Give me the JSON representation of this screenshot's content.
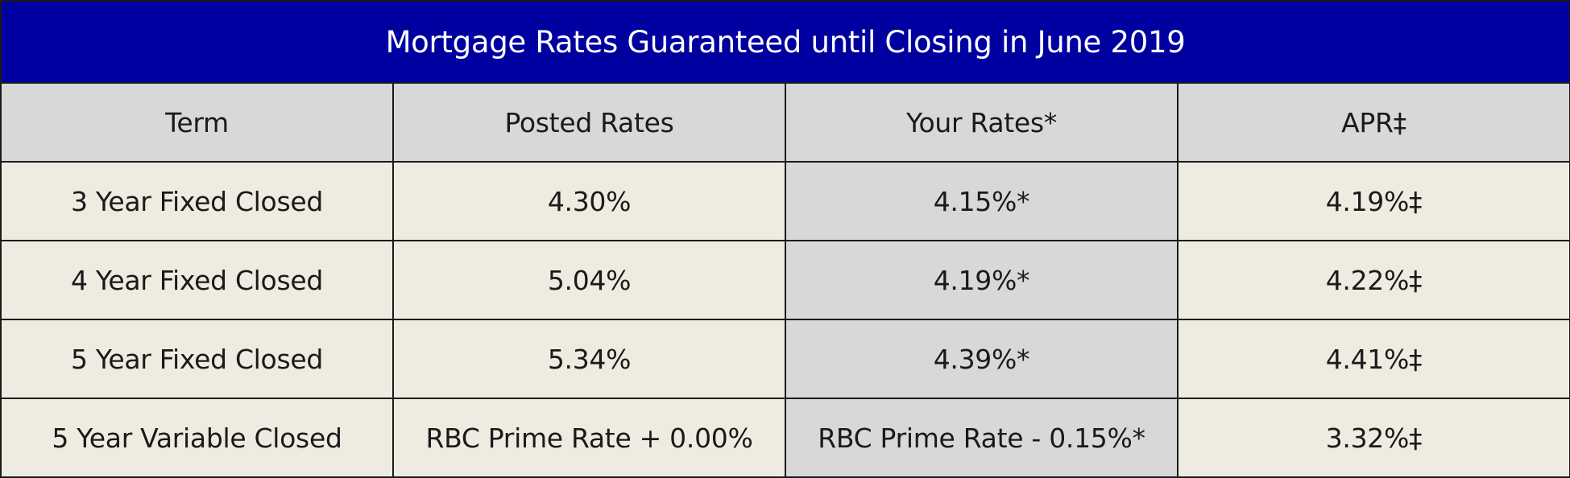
{
  "title": "Mortgage Rates Guaranteed until Closing in June 2019",
  "columns": {
    "term": "Term",
    "posted": "Posted Rates",
    "yours": "Your Rates*",
    "apr": "APR‡"
  },
  "rows": [
    {
      "term": "3 Year Fixed Closed",
      "posted": "4.30%",
      "yours": "4.15%*",
      "apr": "4.19%‡"
    },
    {
      "term": "4 Year Fixed Closed",
      "posted": "5.04%",
      "yours": "4.19%*",
      "apr": "4.22%‡"
    },
    {
      "term": "5 Year Fixed Closed",
      "posted": "5.34%",
      "yours": "4.39%*",
      "apr": "4.41%‡"
    },
    {
      "term": "5 Year Variable Closed",
      "posted": "RBC Prime Rate + 0.00%",
      "yours": "RBC Prime Rate - 0.15%*",
      "apr": "3.32%‡"
    }
  ],
  "colors": {
    "title_bg": "#0000a0",
    "header_bg": "#d8d8d8",
    "row_bg": "#eeece1",
    "your_rate_bg": "#d8d8d8"
  }
}
